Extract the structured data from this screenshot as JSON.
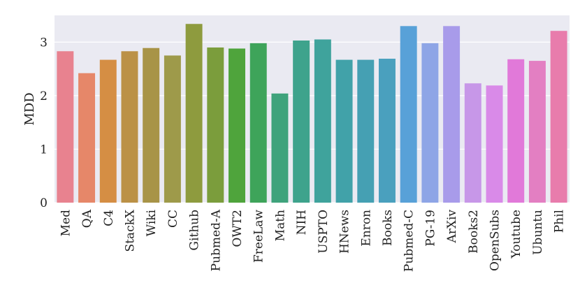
{
  "chart_data": {
    "type": "bar",
    "title": "",
    "xlabel": "",
    "ylabel": "MDD",
    "ylim": [
      0,
      3.5
    ],
    "yticks": [
      0,
      1,
      2,
      3
    ],
    "grid": true,
    "background_color": "#eaeaf2",
    "categories": [
      "Med",
      "QA",
      "C4",
      "StackX",
      "Wiki",
      "CC",
      "Github",
      "Pubmed-A",
      "OWT2",
      "FreeLaw",
      "Math",
      "NIH",
      "USPTO",
      "HNews",
      "Enron",
      "Books",
      "Pubmed-C",
      "PG-19",
      "ArXiv",
      "Books2",
      "OpenSubs",
      "Youtube",
      "Ubuntu",
      "Phil"
    ],
    "values": [
      2.83,
      2.42,
      2.67,
      2.83,
      2.89,
      2.75,
      3.34,
      2.9,
      2.88,
      2.98,
      2.04,
      3.03,
      3.05,
      2.67,
      2.67,
      2.69,
      3.3,
      2.98,
      3.3,
      2.23,
      2.19,
      2.68,
      2.65,
      3.21
    ],
    "colors": [
      "#e8828f",
      "#e68769",
      "#d58e44",
      "#bb9146",
      "#a89447",
      "#9e9a4a",
      "#8e9b3e",
      "#7b9d3c",
      "#4fa43c",
      "#3ea45a",
      "#3fa37c",
      "#3ea38c",
      "#3fa39c",
      "#41a2a9",
      "#45a0b3",
      "#4aa0be",
      "#58a1d8",
      "#8ea5e6",
      "#a89bea",
      "#c797e8",
      "#d98ae8",
      "#e179d9",
      "#e37fc2",
      "#e87cac"
    ]
  }
}
